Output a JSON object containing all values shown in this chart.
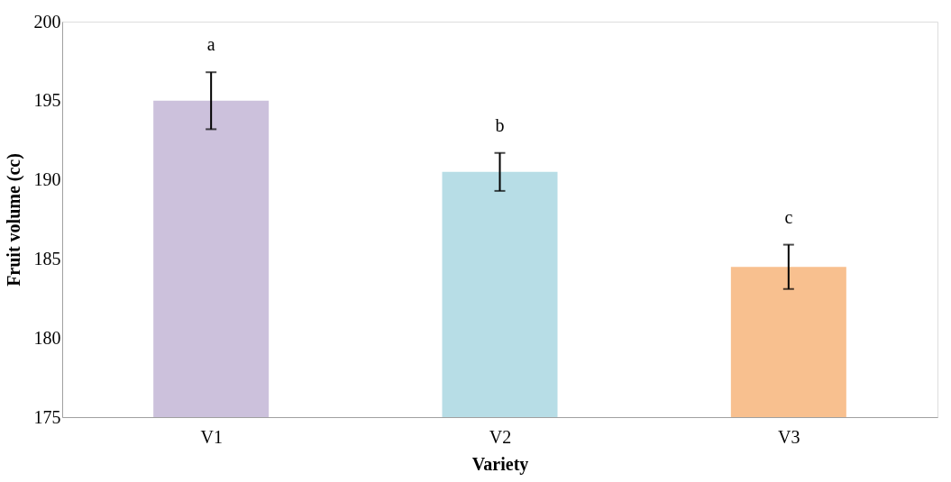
{
  "chart_data": {
    "type": "bar",
    "xlabel": "Variety",
    "ylabel": "Fruit volume (cc)",
    "categories": [
      "V1",
      "V2",
      "V3"
    ],
    "values": [
      195.0,
      190.5,
      184.5
    ],
    "colors": [
      "#ccc1dc",
      "#b7dde6",
      "#f8c08f"
    ],
    "errors": [
      1.8,
      1.2,
      1.4
    ],
    "ylim": [
      175,
      200
    ],
    "yticks": [
      175,
      180,
      185,
      190,
      195,
      200
    ],
    "grid": false,
    "annotations": [
      "a",
      "b",
      "c"
    ]
  }
}
